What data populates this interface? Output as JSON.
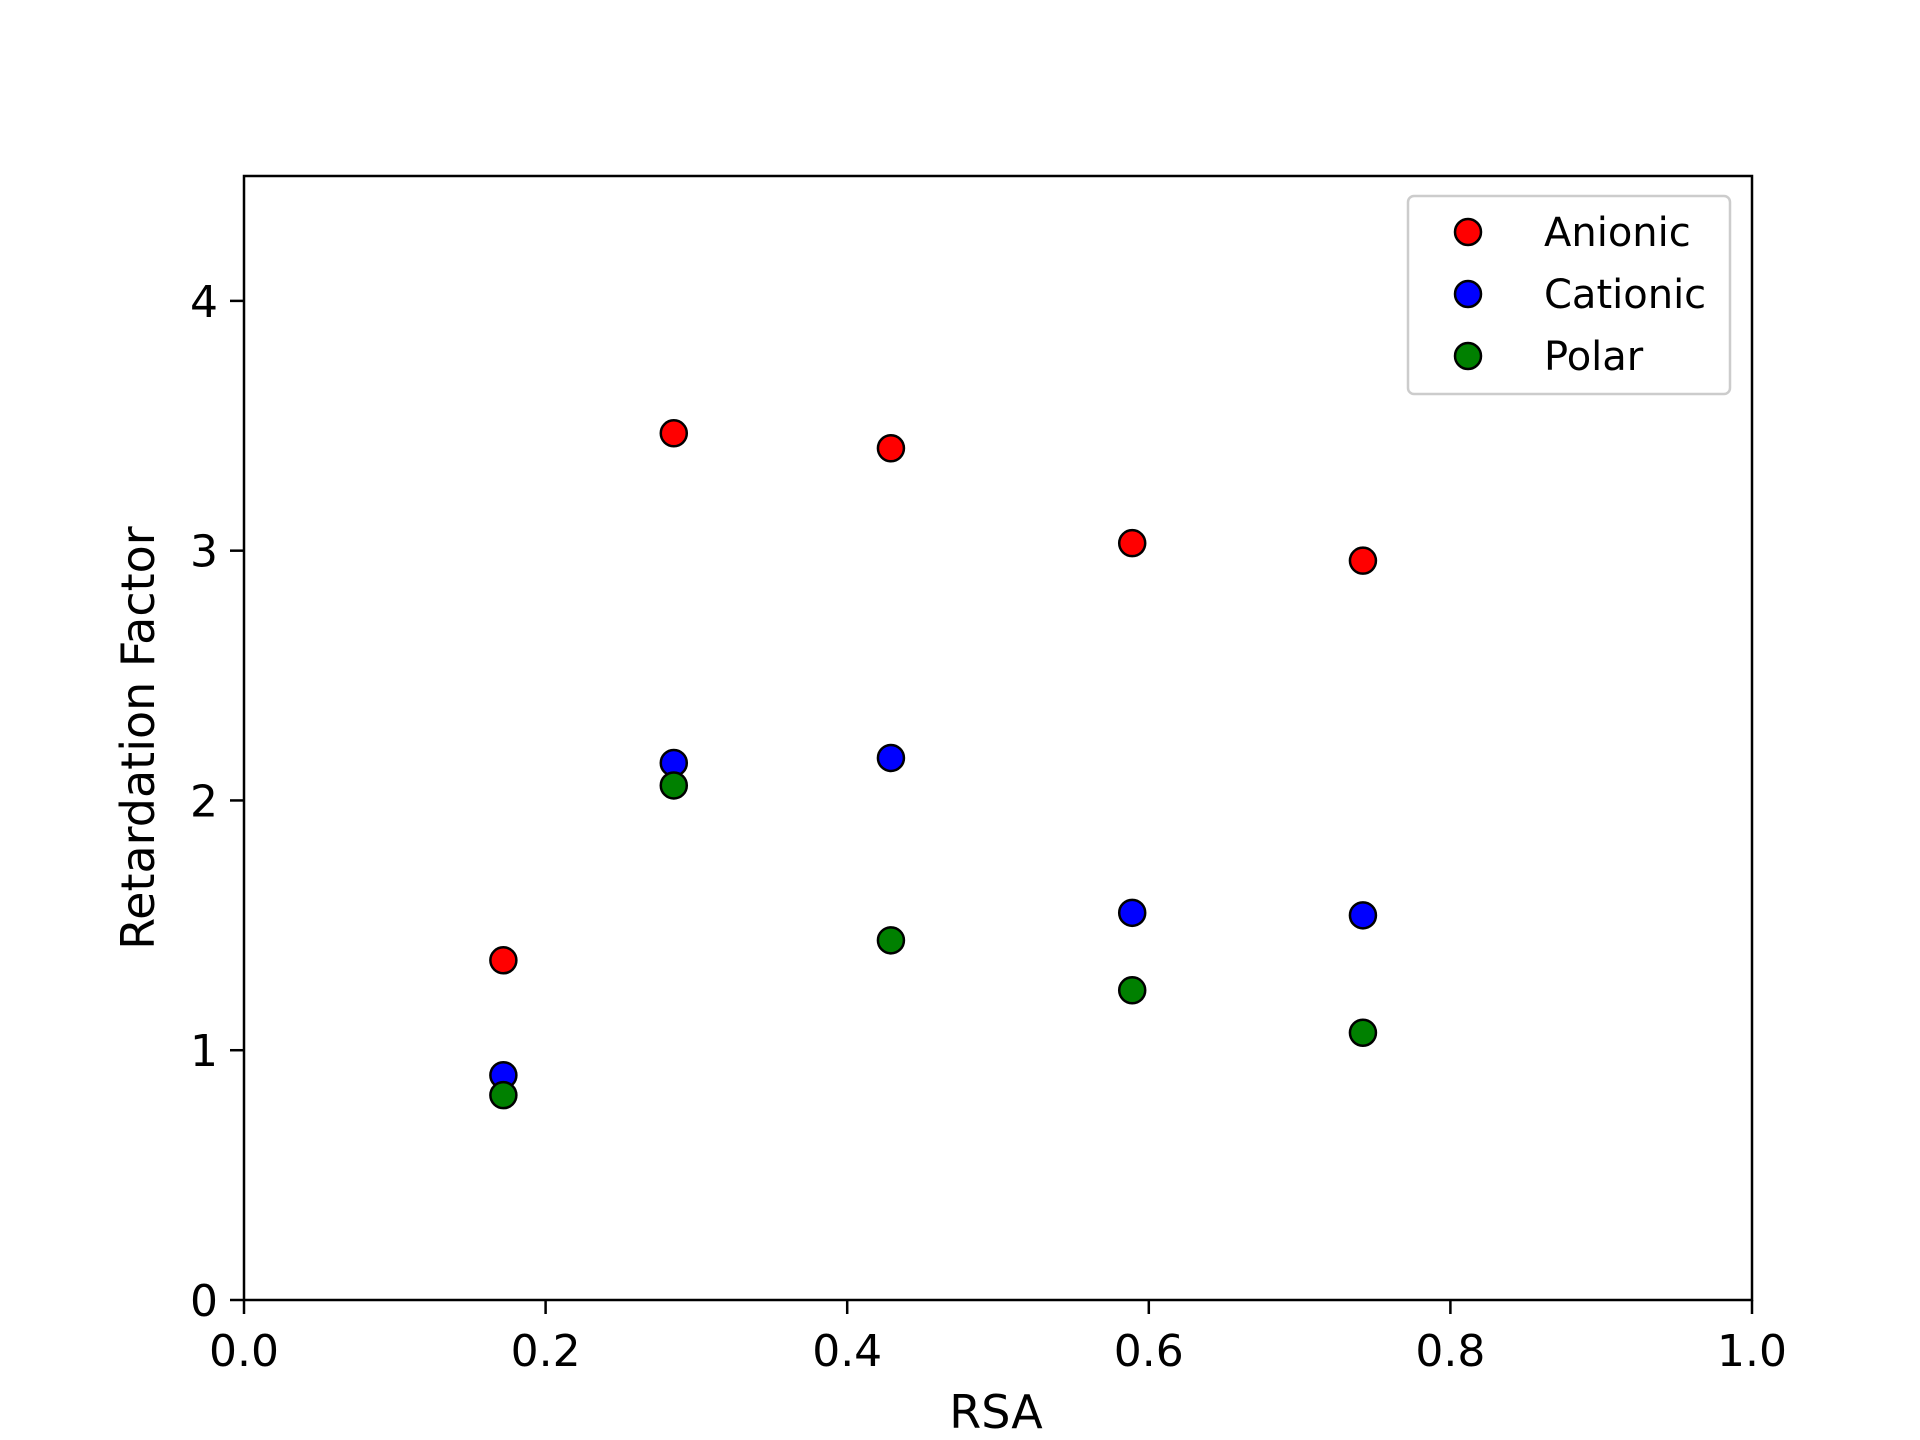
{
  "chart_data": {
    "type": "scatter",
    "title": "",
    "xlabel": "RSA",
    "ylabel": "Retardation Factor",
    "xlim": [
      0.0,
      1.0
    ],
    "ylim": [
      0,
      4.5
    ],
    "xticks": [
      0.0,
      0.2,
      0.4,
      0.6,
      0.8,
      1.0
    ],
    "xtick_labels": [
      "0.0",
      "0.2",
      "0.4",
      "0.6",
      "0.8",
      "1.0"
    ],
    "yticks": [
      0,
      1,
      2,
      3,
      4
    ],
    "ytick_labels": [
      "0",
      "1",
      "2",
      "3",
      "4"
    ],
    "grid": false,
    "legend_position": "top-right",
    "series": [
      {
        "name": "Anionic",
        "color": "#ff0000",
        "x": [
          0.172,
          0.285,
          0.429,
          0.589,
          0.742
        ],
        "y": [
          1.36,
          3.47,
          3.41,
          3.03,
          2.96
        ]
      },
      {
        "name": "Cationic",
        "color": "#0000ff",
        "x": [
          0.172,
          0.285,
          0.429,
          0.589,
          0.742
        ],
        "y": [
          0.9,
          2.15,
          2.17,
          1.55,
          1.54
        ]
      },
      {
        "name": "Polar",
        "color": "#008000",
        "x": [
          0.172,
          0.285,
          0.429,
          0.589,
          0.742
        ],
        "y": [
          0.82,
          2.06,
          1.44,
          1.24,
          1.07
        ]
      }
    ]
  }
}
